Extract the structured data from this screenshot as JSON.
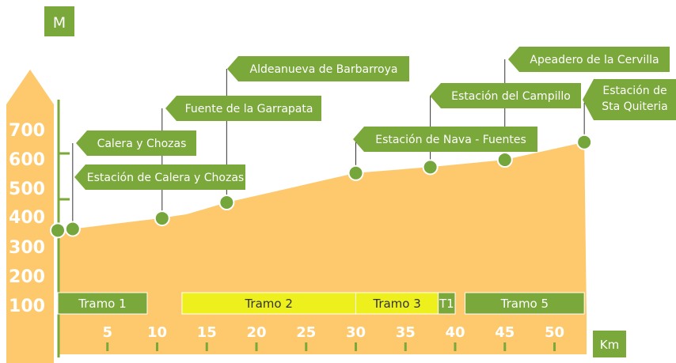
{
  "chart_data": {
    "type": "area",
    "unit_y": "M",
    "unit_x": "Km",
    "y_ticks": [
      100,
      200,
      300,
      400,
      500,
      600,
      700
    ],
    "x_ticks": [
      5,
      10,
      15,
      20,
      25,
      30,
      35,
      40,
      45,
      50
    ],
    "profile": {
      "x": [
        0,
        1.5,
        10,
        13,
        17,
        30,
        38,
        45,
        53
      ],
      "y": [
        355,
        360,
        395,
        410,
        450,
        550,
        572,
        595,
        655
      ]
    },
    "stations": [
      {
        "name": "Estación de Calera y Chozas",
        "km": 0,
        "alt": 355
      },
      {
        "name": "Calera y Chozas",
        "km": 1.5,
        "alt": 360
      },
      {
        "name": "Fuente de la Garrapata",
        "km": 10.5,
        "alt": 396
      },
      {
        "name": "Aldeanueva de Barbarroya",
        "km": 17,
        "alt": 450
      },
      {
        "name": "Estación de Nava - Fuentes",
        "km": 30,
        "alt": 550
      },
      {
        "name": "Estación del Campillo",
        "km": 37.5,
        "alt": 570
      },
      {
        "name": "Apeadero de la Cervilla",
        "km": 45,
        "alt": 595
      },
      {
        "name": "Estación de Sta Quiteria",
        "km": 53,
        "alt": 655
      }
    ],
    "tramos": [
      {
        "label": "Tramo 1",
        "start": 0,
        "end": 9,
        "color": "#7aa83a"
      },
      {
        "label": "Tramo 2",
        "start": 12.5,
        "end": 30,
        "color": "#eef01e"
      },
      {
        "label": "Tramo 3",
        "start": 30,
        "end": 38.3,
        "color": "#eef01e"
      },
      {
        "label": "T1",
        "start": 38.3,
        "end": 40,
        "color": "#7aa83a"
      },
      {
        "label": "Tramo 5",
        "start": 41,
        "end": 53,
        "color": "#7aa83a"
      }
    ],
    "colors": {
      "area": "#fdc96c",
      "axis_band": "#fdc96c",
      "accent_green": "#7aa83a",
      "marker": "#74a63c",
      "tick_label": "#ffffff"
    }
  }
}
